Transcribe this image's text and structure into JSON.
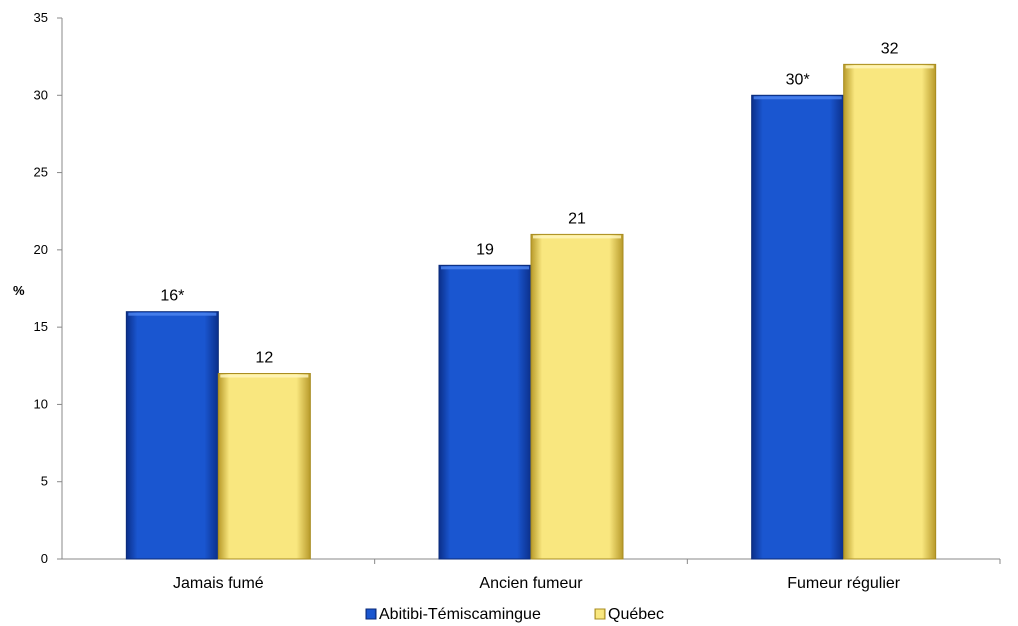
{
  "chart_data": {
    "type": "bar",
    "title": "",
    "xlabel": "",
    "ylabel": "%",
    "ylim": [
      0,
      35
    ],
    "yticks": [
      0,
      5,
      10,
      15,
      20,
      25,
      30,
      35
    ],
    "categories": [
      "Jamais fumé",
      "Ancien fumeur",
      "Fumeur régulier"
    ],
    "series": [
      {
        "name": "Abitibi-Témiscamingue",
        "values": [
          16,
          19,
          30
        ],
        "labels": [
          "16*",
          "19",
          "30*"
        ],
        "color": "#1550c8"
      },
      {
        "name": "Québec",
        "values": [
          12,
          21,
          32
        ],
        "labels": [
          "12",
          "21",
          "32"
        ],
        "color": "#f7e27a"
      }
    ],
    "grid": false,
    "legend": "bottom"
  }
}
